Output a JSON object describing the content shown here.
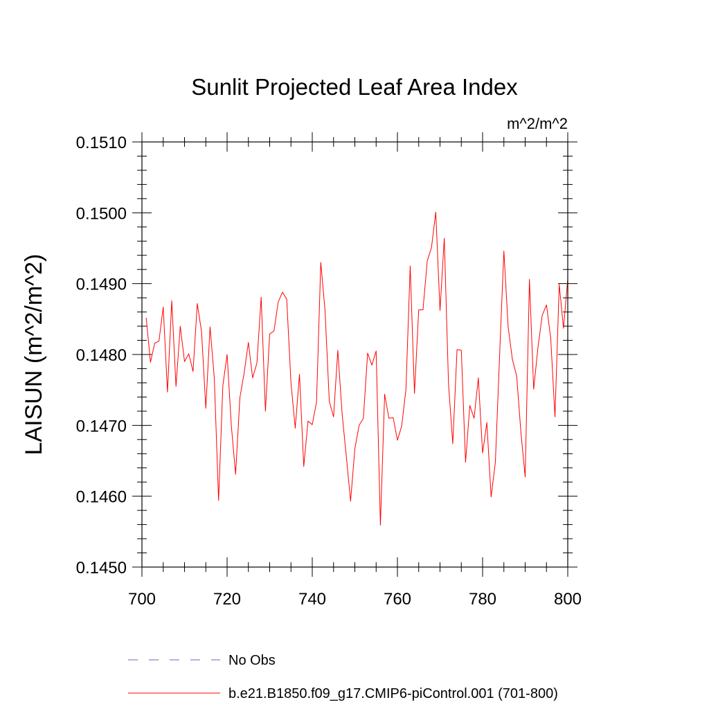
{
  "chart_data": {
    "type": "line",
    "title": "Sunlit Projected Leaf Area Index",
    "units_label": "m^2/m^2",
    "xlabel": "",
    "ylabel": "LAISUN  (m^2/m^2)",
    "xlim": [
      700,
      800
    ],
    "ylim": [
      0.145,
      0.151
    ],
    "xticks": [
      700,
      720,
      740,
      760,
      780,
      800
    ],
    "xtick_labels": [
      "700",
      "720",
      "740",
      "760",
      "780",
      "800"
    ],
    "yticks": [
      0.145,
      0.146,
      0.147,
      0.148,
      0.149,
      0.15,
      0.151
    ],
    "ytick_labels": [
      "0.1450",
      "0.1460",
      "0.1470",
      "0.1480",
      "0.1490",
      "0.1500",
      "0.1510"
    ],
    "series": [
      {
        "name": "b.e21.B1850.f09_g17.CMIP6-piControl.001 (701-800)",
        "color": "#ff0000",
        "style": "solid",
        "x": [
          701,
          702,
          703,
          704,
          705,
          706,
          707,
          708,
          709,
          710,
          711,
          712,
          713,
          714,
          715,
          716,
          717,
          718,
          719,
          720,
          721,
          722,
          723,
          724,
          725,
          726,
          727,
          728,
          729,
          730,
          731,
          732,
          733,
          734,
          735,
          736,
          737,
          738,
          739,
          740,
          741,
          742,
          743,
          744,
          745,
          746,
          747,
          748,
          749,
          750,
          751,
          752,
          753,
          754,
          755,
          756,
          757,
          758,
          759,
          760,
          761,
          762,
          763,
          764,
          765,
          766,
          767,
          768,
          769,
          770,
          771,
          772,
          773,
          774,
          775,
          776,
          777,
          778,
          779,
          780,
          781,
          782,
          783,
          784,
          785,
          786,
          787,
          788,
          789,
          790,
          791,
          792,
          793,
          794,
          795,
          796,
          797,
          798,
          799,
          800
        ],
        "values": [
          0.14852,
          0.14789,
          0.14816,
          0.14819,
          0.14867,
          0.14747,
          0.14876,
          0.14755,
          0.1484,
          0.1479,
          0.14801,
          0.14776,
          0.14872,
          0.14832,
          0.14724,
          0.14839,
          0.14766,
          0.14594,
          0.14756,
          0.148,
          0.14699,
          0.14631,
          0.14739,
          0.14774,
          0.14817,
          0.14767,
          0.14788,
          0.14881,
          0.1472,
          0.14829,
          0.14833,
          0.14874,
          0.14888,
          0.14878,
          0.1476,
          0.14696,
          0.14772,
          0.14642,
          0.14706,
          0.14701,
          0.14733,
          0.1493,
          0.14862,
          0.14734,
          0.14712,
          0.14806,
          0.14717,
          0.14656,
          0.14593,
          0.14667,
          0.147,
          0.1471,
          0.14802,
          0.14785,
          0.14805,
          0.14559,
          0.14744,
          0.1471,
          0.14711,
          0.14679,
          0.14699,
          0.14751,
          0.14925,
          0.14745,
          0.14863,
          0.14863,
          0.14932,
          0.14951,
          0.15001,
          0.14862,
          0.14964,
          0.14758,
          0.14674,
          0.14807,
          0.14806,
          0.14648,
          0.14728,
          0.1471,
          0.14767,
          0.14661,
          0.14704,
          0.14599,
          0.14648,
          0.14799,
          0.14946,
          0.14839,
          0.14793,
          0.1477,
          0.1469,
          0.14627,
          0.14906,
          0.14751,
          0.1481,
          0.14855,
          0.1487,
          0.14823,
          0.14712,
          0.14899,
          0.14837,
          0.14907
        ]
      },
      {
        "name": "No Obs",
        "color": "#6666cc",
        "style": "dashed",
        "x": [],
        "values": []
      }
    ],
    "legend": [
      "No Obs",
      "b.e21.B1850.f09_g17.CMIP6-piControl.001 (701-800)"
    ],
    "legend_position": "bottom",
    "grid": false
  }
}
